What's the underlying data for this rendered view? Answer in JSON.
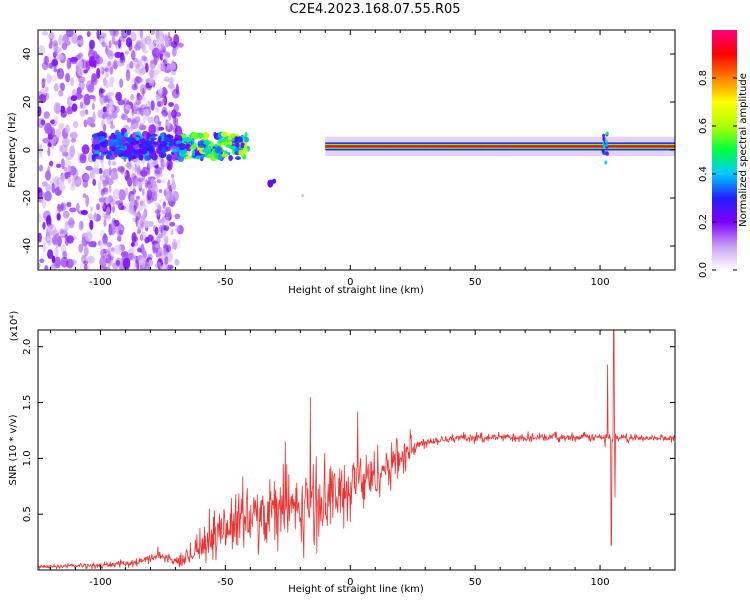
{
  "title": "C2E4.2023.168.07.55.R05",
  "chart_data": [
    {
      "type": "heatmap",
      "panel": "spectrogram",
      "xlabel": "Height of straight line (km)",
      "ylabel": "Frequency (Hz)",
      "xlim": [
        -125,
        130
      ],
      "ylim": [
        -50,
        50
      ],
      "xticks": [
        -100,
        -50,
        0,
        50,
        100
      ],
      "yticks": [
        -40,
        -20,
        0,
        20,
        40
      ],
      "colorbar": {
        "label": "Normalized spectral amplitude",
        "range": [
          0,
          1
        ],
        "ticks": [
          "0.0",
          "0.2",
          "0.4",
          "0.6",
          "0.8"
        ],
        "colors": [
          "#ffffff",
          "#c9a0f0",
          "#8000ff",
          "#2020ff",
          "#00c8ff",
          "#00ff40",
          "#b0ff00",
          "#ffff00",
          "#ff8000",
          "#ff0000",
          "#ff0080"
        ]
      },
      "features": {
        "noise_region_x": [
          -125,
          -68
        ],
        "noise_columns_x": [
          -97,
          -85,
          -75
        ],
        "signal_band_freq_hz": 1.5,
        "signal_band_x": [
          -68,
          130
        ],
        "strong_band_x": [
          -10,
          130
        ],
        "isolated_blob": {
          "x": -32,
          "y": -14
        },
        "spike_x": 102
      }
    },
    {
      "type": "line",
      "panel": "snr",
      "xlabel": "Height of straight line (km)",
      "ylabel": "SNR (10 * v/v)",
      "yscale_label": "(x10⁴)",
      "xlim": [
        -125,
        130
      ],
      "ylim": [
        0,
        2.15
      ],
      "xticks": [
        -100,
        -50,
        0,
        50,
        100
      ],
      "yticks": [
        0.5,
        1.0,
        1.5,
        2.0
      ],
      "ytick_labels": [
        "0.5",
        "1.0",
        "1.5",
        "2.0"
      ],
      "color": "#ee3333",
      "baseline_points": [
        {
          "x": -125,
          "y": 0.03
        },
        {
          "x": -100,
          "y": 0.04
        },
        {
          "x": -85,
          "y": 0.07
        },
        {
          "x": -77,
          "y": 0.13
        },
        {
          "x": -68,
          "y": 0.07
        },
        {
          "x": -60,
          "y": 0.22
        },
        {
          "x": -50,
          "y": 0.38
        },
        {
          "x": -40,
          "y": 0.48
        },
        {
          "x": -30,
          "y": 0.55
        },
        {
          "x": -20,
          "y": 0.58
        },
        {
          "x": -10,
          "y": 0.62
        },
        {
          "x": 0,
          "y": 0.75
        },
        {
          "x": 10,
          "y": 0.85
        },
        {
          "x": 20,
          "y": 1.02
        },
        {
          "x": 30,
          "y": 1.15
        },
        {
          "x": 40,
          "y": 1.18
        },
        {
          "x": 60,
          "y": 1.19
        },
        {
          "x": 80,
          "y": 1.19
        },
        {
          "x": 100,
          "y": 1.19
        },
        {
          "x": 110,
          "y": 1.18
        },
        {
          "x": 130,
          "y": 1.18
        }
      ],
      "noise_amplitude": [
        {
          "x": -125,
          "a": 0.02
        },
        {
          "x": -70,
          "a": 0.04
        },
        {
          "x": -60,
          "a": 0.18
        },
        {
          "x": -45,
          "a": 0.3
        },
        {
          "x": -20,
          "a": 0.38
        },
        {
          "x": 0,
          "a": 0.32
        },
        {
          "x": 20,
          "a": 0.18
        },
        {
          "x": 28,
          "a": 0.05
        },
        {
          "x": 130,
          "a": 0.03
        }
      ],
      "peaks": [
        {
          "x": -77,
          "y": 0.21
        },
        {
          "x": -43,
          "y": 0.84
        },
        {
          "x": -26,
          "y": 1.15
        },
        {
          "x": -16,
          "y": 1.55
        },
        {
          "x": 3,
          "y": 1.42
        },
        {
          "x": 24,
          "y": 1.26
        },
        {
          "x": 103,
          "y": 1.84
        },
        {
          "x": 104.5,
          "y": 0.22
        },
        {
          "x": 105.5,
          "y": 2.15
        },
        {
          "x": 106,
          "y": 0.65
        },
        {
          "x": 102,
          "y": 1.1
        }
      ]
    }
  ]
}
